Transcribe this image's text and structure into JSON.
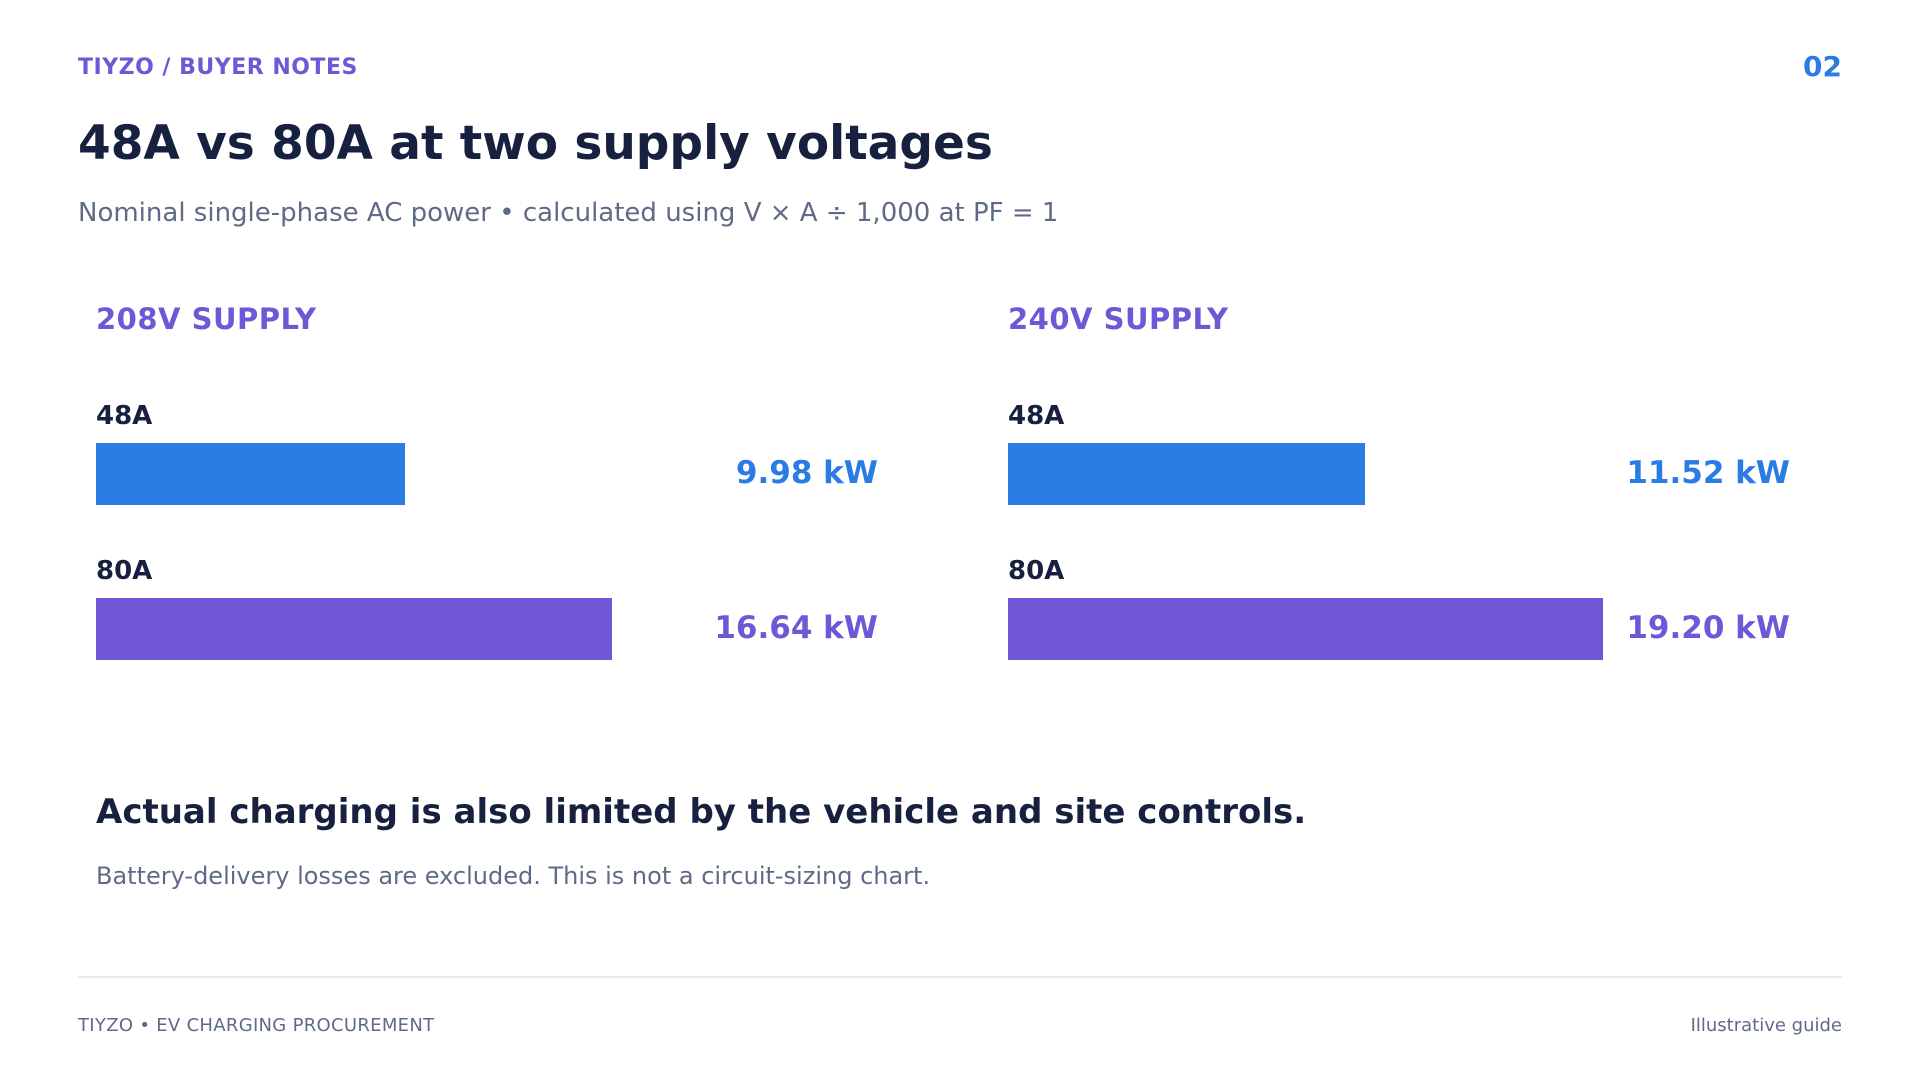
{
  "header": {
    "brand": "TIYZO  /  BUYER NOTES",
    "page_number": "02",
    "title": "48A vs 80A at two supply voltages",
    "subtitle": "Nominal single-phase AC power • calculated using V × A ÷ 1,000 at PF = 1"
  },
  "colors": {
    "accent_blue": "#2a7be4",
    "accent_purple": "#6f57d6",
    "text_dark": "#17213f",
    "text_muted": "#5f6b86"
  },
  "chart_data": [
    {
      "type": "bar",
      "orientation": "horizontal",
      "title": "208V SUPPLY",
      "categories": [
        "48A",
        "80A"
      ],
      "values": [
        9.98,
        16.64
      ],
      "value_labels": [
        "9.98 kW",
        "16.64 kW"
      ],
      "unit": "kW",
      "bar_colors": [
        "#2a7be4",
        "#6f57d6"
      ],
      "xlim": [
        0,
        20
      ],
      "grid": false
    },
    {
      "type": "bar",
      "orientation": "horizontal",
      "title": "240V SUPPLY",
      "categories": [
        "48A",
        "80A"
      ],
      "values": [
        11.52,
        19.2
      ],
      "value_labels": [
        "11.52 kW",
        "19.20 kW"
      ],
      "unit": "kW",
      "bar_colors": [
        "#2a7be4",
        "#6f57d6"
      ],
      "xlim": [
        0,
        20
      ],
      "grid": false
    }
  ],
  "footnote": {
    "heading": "Actual charging is also limited by the vehicle and site controls.",
    "body": "Battery-delivery losses are excluded. This is not a circuit-sizing chart."
  },
  "footer": {
    "left": "TIYZO  •  EV CHARGING PROCUREMENT",
    "right": "Illustrative guide"
  }
}
